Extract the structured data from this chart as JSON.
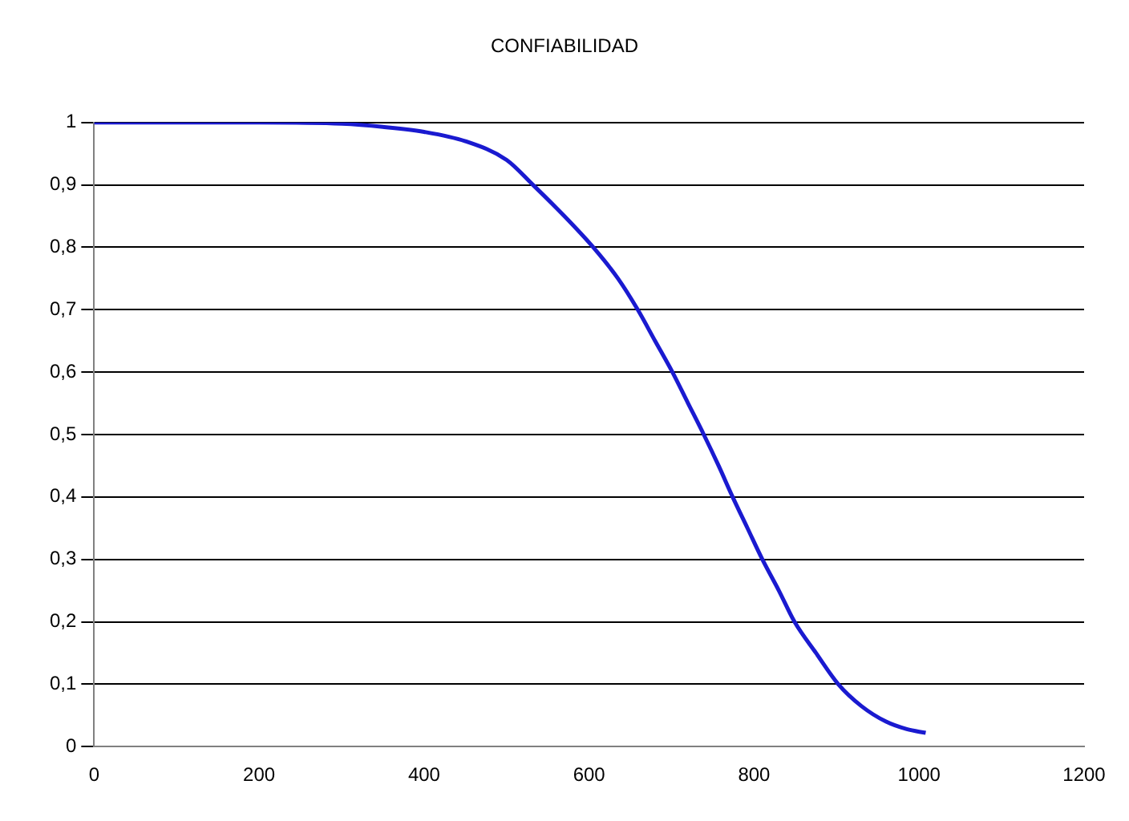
{
  "chart_data": {
    "type": "line",
    "title": "CONFIABILIDAD",
    "series": [
      {
        "color": "#1a1ad0",
        "x": [
          0,
          100,
          200,
          300,
          350,
          400,
          450,
          500,
          532,
          570,
          605,
          635,
          659,
          680,
          701,
          720,
          739,
          757,
          774,
          792,
          810,
          830,
          849,
          875,
          902,
          930,
          960,
          985,
          1008
        ],
        "values": [
          1,
          1,
          1,
          0.998,
          0.993,
          0.985,
          0.97,
          0.94,
          0.9,
          0.85,
          0.8,
          0.75,
          0.7,
          0.65,
          0.6,
          0.55,
          0.5,
          0.45,
          0.4,
          0.35,
          0.3,
          0.25,
          0.2,
          0.15,
          0.1,
          0.065,
          0.04,
          0.028,
          0.022
        ]
      }
    ],
    "xlim": [
      0,
      1200
    ],
    "xticks": [
      0,
      200,
      400,
      600,
      800,
      1000,
      1200
    ],
    "ylim": [
      0,
      1
    ],
    "yticks": [
      0,
      {
        "value": 0.1,
        "label": "0,1"
      },
      {
        "value": 0.2,
        "label": "0,2"
      },
      {
        "value": 0.3,
        "label": "0,3"
      },
      {
        "value": 0.4,
        "label": "0,4"
      },
      {
        "value": 0.5,
        "label": "0,5"
      },
      {
        "value": 0.6,
        "label": "0,6"
      },
      {
        "value": 0.7,
        "label": "0,7"
      },
      {
        "value": 0.8,
        "label": "0,8"
      },
      {
        "value": 0.9,
        "label": "0,9"
      },
      1
    ],
    "grid": "y",
    "legend": false,
    "marker": "none",
    "line_style": "solid"
  }
}
